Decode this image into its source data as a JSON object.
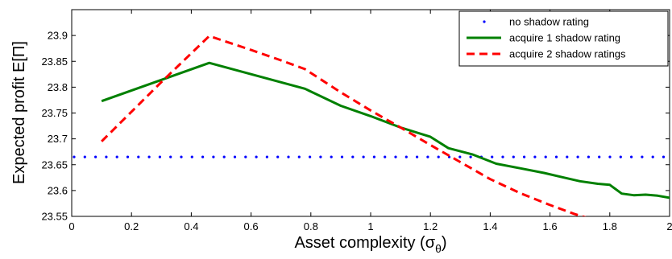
{
  "chart_data": {
    "type": "line",
    "xlabel": "Asset complexity (σ",
    "xlabel_sub": "θ",
    "xlabel_close": ")",
    "ylabel": "Expected profit E[Π]",
    "xlim": [
      0,
      2
    ],
    "ylim": [
      23.55,
      23.95
    ],
    "x_ticks": [
      "0",
      "0.2",
      "0.4",
      "0.6",
      "0.8",
      "1",
      "1.2",
      "1.4",
      "1.6",
      "1.8",
      "2"
    ],
    "y_ticks": [
      "23.55",
      "23.6",
      "23.65",
      "23.7",
      "23.75",
      "23.8",
      "23.85",
      "23.9"
    ],
    "grid": false,
    "legend_position": "top-right",
    "series": [
      {
        "name": "no shadow rating",
        "color": "#0000ff",
        "style": "dotted",
        "x": [
          0,
          2
        ],
        "y": [
          23.665,
          23.665
        ]
      },
      {
        "name": "acquire 1 shadow rating",
        "color": "#008000",
        "style": "solid",
        "x": [
          0.1,
          0.46,
          0.78,
          0.9,
          1.0,
          1.1,
          1.2,
          1.26,
          1.34,
          1.42,
          1.5,
          1.58,
          1.64,
          1.7,
          1.76,
          1.8,
          1.84,
          1.88,
          1.92,
          1.96,
          2.0
        ],
        "y": [
          23.773,
          23.847,
          23.797,
          23.764,
          23.744,
          23.722,
          23.704,
          23.682,
          23.67,
          23.652,
          23.643,
          23.634,
          23.626,
          23.618,
          23.613,
          23.611,
          23.594,
          23.591,
          23.592,
          23.59,
          23.586
        ]
      },
      {
        "name": "acquire 2 shadow ratings",
        "color": "#ff0000",
        "style": "dashed",
        "x": [
          0.1,
          0.3,
          0.46,
          0.6,
          0.7,
          0.78,
          0.9,
          1.0,
          1.1,
          1.2,
          1.3,
          1.4,
          1.5,
          1.6,
          1.68,
          1.72
        ],
        "y": [
          23.695,
          23.81,
          23.899,
          23.872,
          23.852,
          23.835,
          23.79,
          23.755,
          23.722,
          23.688,
          23.655,
          23.622,
          23.595,
          23.572,
          23.555,
          23.548
        ]
      }
    ]
  }
}
